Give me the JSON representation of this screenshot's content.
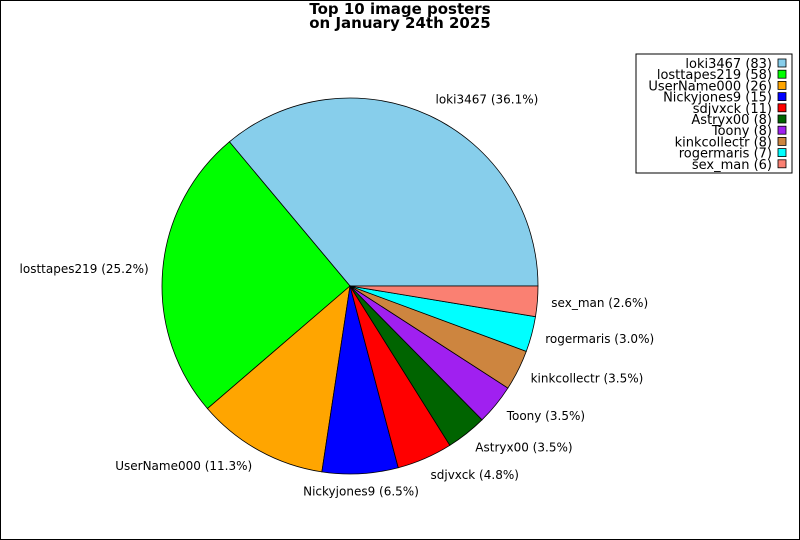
{
  "chart_data": {
    "type": "pie",
    "title_lines": [
      "Top 10 image posters",
      "on January 24th 2025"
    ],
    "slices": [
      {
        "name": "loki3467",
        "value": 83,
        "percent": "36.1%",
        "color": "#87ceeb"
      },
      {
        "name": "losttapes219",
        "value": 58,
        "percent": "25.2%",
        "color": "#00ff00"
      },
      {
        "name": "UserName000",
        "value": 26,
        "percent": "11.3%",
        "color": "#ffa500"
      },
      {
        "name": "Nickyjones9",
        "value": 15,
        "percent": "6.5%",
        "color": "#0000ff"
      },
      {
        "name": "sdjvxck",
        "value": 11,
        "percent": "4.8%",
        "color": "#ff0000"
      },
      {
        "name": "Astryx00",
        "value": 8,
        "percent": "3.5%",
        "color": "#006400"
      },
      {
        "name": "Toony",
        "value": 8,
        "percent": "3.5%",
        "color": "#a020f0"
      },
      {
        "name": "kinkcollectr",
        "value": 8,
        "percent": "3.5%",
        "color": "#cd853f"
      },
      {
        "name": "rogermaris",
        "value": 7,
        "percent": "3.0%",
        "color": "#00ffff"
      },
      {
        "name": "sex_man",
        "value": 6,
        "percent": "2.6%",
        "color": "#fa8072"
      }
    ],
    "legend_position": "top-right"
  }
}
